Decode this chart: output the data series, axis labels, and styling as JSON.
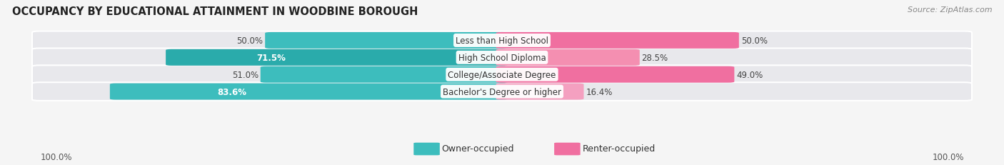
{
  "title": "OCCUPANCY BY EDUCATIONAL ATTAINMENT IN WOODBINE BOROUGH",
  "source": "Source: ZipAtlas.com",
  "categories": [
    "Less than High School",
    "High School Diploma",
    "College/Associate Degree",
    "Bachelor's Degree or higher"
  ],
  "owner_values": [
    50.0,
    71.5,
    51.0,
    83.6
  ],
  "renter_values": [
    50.0,
    28.5,
    49.0,
    16.4
  ],
  "owner_color": "#3DBDBD",
  "renter_color_rows": [
    "#F06FA0",
    "#F48FB1",
    "#F06FA0",
    "#F4A0C0"
  ],
  "owner_color_rows": [
    "#3DBDBD",
    "#2AABAB",
    "#3DBDBD",
    "#3DBDBD"
  ],
  "background_color": "#F5F5F5",
  "bar_bg_color": "#E8E8EC",
  "title_fontsize": 10.5,
  "source_fontsize": 8,
  "value_fontsize": 8.5,
  "cat_label_fontsize": 8.5,
  "legend_fontsize": 9,
  "axis_label_fontsize": 8.5,
  "axis_left_label": "100.0%",
  "axis_right_label": "100.0%",
  "legend_owner_label": "Owner-occupied",
  "legend_renter_label": "Renter-occupied"
}
